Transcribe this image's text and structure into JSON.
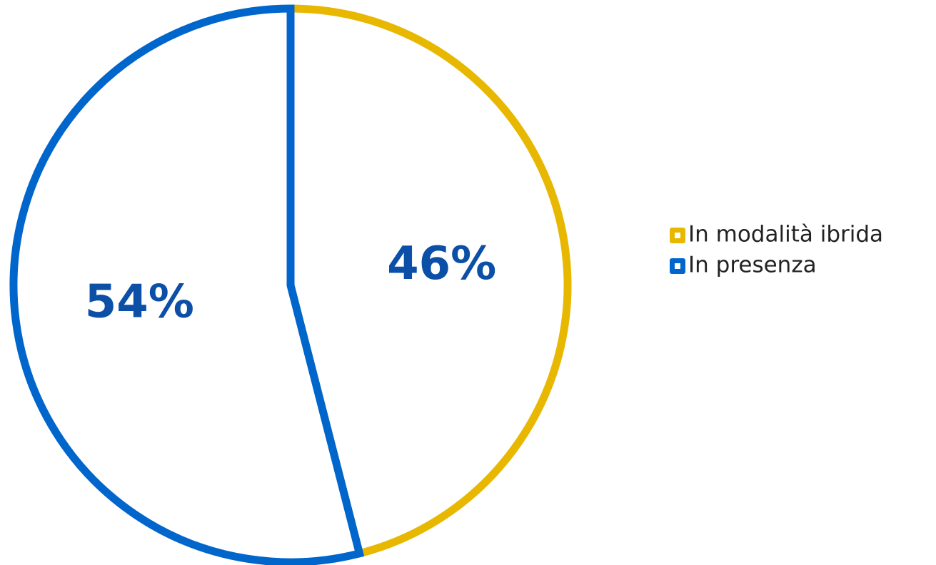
{
  "chart_data": {
    "type": "pie",
    "title": "",
    "slices": [
      {
        "label": "In modalità ibrida",
        "value": 46,
        "display": "46%",
        "color": "#E8B800"
      },
      {
        "label": "In presenza",
        "value": 54,
        "display": "54%",
        "color": "#0066CC"
      }
    ],
    "label_color": "#0B4FA6",
    "start_angle_deg": 0,
    "direction": "clockwise",
    "slice_fill": "#ffffff",
    "legend": {
      "position": "right",
      "items": [
        {
          "label": "In modalità ibrida",
          "color": "#E8B800"
        },
        {
          "label": "In presenza",
          "color": "#0066CC"
        }
      ]
    }
  }
}
